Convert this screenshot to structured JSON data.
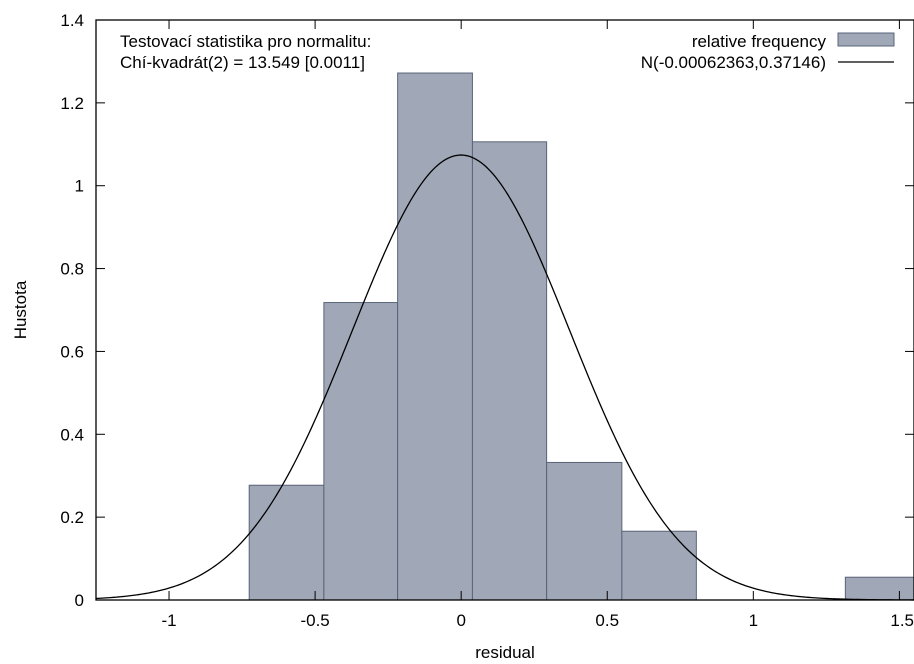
{
  "chart_data": {
    "type": "bar",
    "xlabel": "residual",
    "ylabel": "Hustota",
    "xlim": [
      -1.25,
      1.55
    ],
    "ylim": [
      0,
      1.4
    ],
    "x_ticks": [
      -1,
      -0.5,
      0,
      0.5,
      1,
      1.5
    ],
    "x_tick_labels": [
      "-1",
      "-0.5",
      "0",
      "0.5",
      "1",
      "1.5"
    ],
    "y_ticks": [
      0,
      0.2,
      0.4,
      0.6,
      0.8,
      1,
      1.2,
      1.4
    ],
    "y_tick_labels": [
      "0",
      "0.2",
      "0.4",
      "0.6",
      "0.8",
      "1",
      "1.2",
      "1.4"
    ],
    "grid": false,
    "legend_position": "top-right",
    "annotations": [
      "Testovací statistika pro normalitu:",
      "Chí-kvadrát(2) = 13.549 [0.0011]"
    ],
    "series": [
      {
        "name": "relative frequency",
        "kind": "histogram",
        "color": "#a0a8b8",
        "edge_color": "#5a6478",
        "bins": [
          {
            "x0": -0.7256,
            "x1": -0.47,
            "value": 0.277
          },
          {
            "x0": -0.47,
            "x1": -0.2175,
            "value": 0.718
          },
          {
            "x0": -0.2175,
            "x1": 0.0385,
            "value": 1.272
          },
          {
            "x0": 0.0385,
            "x1": 0.2925,
            "value": 1.106
          },
          {
            "x0": 0.2925,
            "x1": 0.55,
            "value": 0.332
          },
          {
            "x0": 0.55,
            "x1": 0.805,
            "value": 0.166
          },
          {
            "x0": 1.315,
            "x1": 1.55,
            "value": 0.055
          }
        ]
      },
      {
        "name": "N(-0.00062363,0.37146)",
        "kind": "normal-density",
        "color": "#000000",
        "mean": -0.00062363,
        "sd": 0.37146
      }
    ]
  }
}
